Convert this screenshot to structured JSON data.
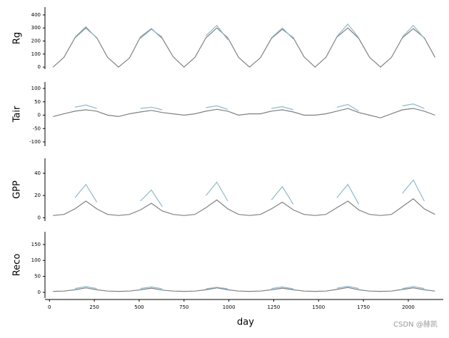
{
  "chart_data": [
    {
      "type": "line",
      "ylabel": "Rg",
      "x": [
        20,
        81,
        142,
        203,
        264,
        324,
        385,
        446,
        507,
        568,
        629,
        689,
        750,
        811,
        872,
        933,
        994,
        1054,
        1115,
        1176,
        1237,
        1298,
        1359,
        1419,
        1480,
        1541,
        1602,
        1663,
        1724,
        1784,
        1845,
        1906,
        1967,
        2028,
        2089,
        2149
      ],
      "xlim": [
        -25,
        2195
      ],
      "ylim": [
        -16,
        460
      ],
      "yticks": [
        0,
        100,
        200,
        300,
        400
      ],
      "series": [
        {
          "color": "#808080",
          "values": [
            0,
            75,
            225,
            300,
            225,
            75,
            0,
            70,
            230,
            295,
            220,
            80,
            0,
            75,
            225,
            300,
            225,
            75,
            0,
            72,
            220,
            290,
            225,
            78,
            0,
            75,
            230,
            300,
            220,
            75,
            0,
            75,
            225,
            295,
            225,
            75
          ]
        },
        {
          "color": "#8fb8cc",
          "values": [
            null,
            null,
            230,
            310,
            220,
            null,
            null,
            null,
            220,
            290,
            230,
            null,
            null,
            null,
            240,
            320,
            210,
            null,
            null,
            null,
            225,
            300,
            215,
            null,
            null,
            null,
            235,
            330,
            225,
            null,
            null,
            null,
            230,
            320,
            220,
            null
          ]
        }
      ]
    },
    {
      "type": "line",
      "ylabel": "Tair",
      "x": [
        20,
        81,
        142,
        203,
        264,
        324,
        385,
        446,
        507,
        568,
        629,
        689,
        750,
        811,
        872,
        933,
        994,
        1054,
        1115,
        1176,
        1237,
        1298,
        1359,
        1419,
        1480,
        1541,
        1602,
        1663,
        1724,
        1784,
        1845,
        1906,
        1967,
        2028,
        2089,
        2149
      ],
      "xlim": [
        -25,
        2195
      ],
      "ylim": [
        -116,
        124
      ],
      "yticks": [
        -100,
        -50,
        0,
        50,
        100
      ],
      "series": [
        {
          "color": "#808080",
          "values": [
            -5,
            5,
            15,
            20,
            15,
            0,
            -5,
            5,
            12,
            18,
            10,
            5,
            0,
            5,
            15,
            22,
            15,
            0,
            5,
            5,
            15,
            20,
            12,
            0,
            0,
            5,
            15,
            25,
            10,
            0,
            -10,
            5,
            20,
            25,
            15,
            0
          ]
        },
        {
          "color": "#8fb8cc",
          "values": [
            null,
            null,
            30,
            38,
            25,
            null,
            null,
            null,
            25,
            30,
            20,
            null,
            null,
            null,
            28,
            35,
            22,
            null,
            null,
            null,
            25,
            32,
            20,
            null,
            null,
            null,
            30,
            40,
            15,
            null,
            null,
            null,
            35,
            42,
            25,
            null
          ]
        }
      ]
    },
    {
      "type": "line",
      "ylabel": "GPP",
      "x": [
        20,
        81,
        142,
        203,
        264,
        324,
        385,
        446,
        507,
        568,
        629,
        689,
        750,
        811,
        872,
        933,
        994,
        1054,
        1115,
        1176,
        1237,
        1298,
        1359,
        1419,
        1480,
        1541,
        1602,
        1663,
        1724,
        1784,
        1845,
        1906,
        1967,
        2028,
        2089,
        2149
      ],
      "xlim": [
        -25,
        2195
      ],
      "ylim": [
        -3,
        53.5
      ],
      "yticks": [
        0,
        20,
        40
      ],
      "series": [
        {
          "color": "#808080",
          "values": [
            2,
            3,
            8,
            15,
            8,
            3,
            2,
            3,
            7,
            13,
            6,
            3,
            2,
            3,
            9,
            16,
            8,
            3,
            2,
            3,
            8,
            14,
            7,
            3,
            2,
            3,
            9,
            15,
            7,
            3,
            2,
            3,
            10,
            17,
            8,
            3
          ]
        },
        {
          "color": "#8fb8cc",
          "values": [
            null,
            null,
            18,
            30,
            14,
            null,
            null,
            null,
            15,
            25,
            10,
            null,
            null,
            null,
            20,
            32,
            15,
            null,
            null,
            null,
            16,
            28,
            12,
            null,
            null,
            null,
            18,
            30,
            12,
            null,
            null,
            null,
            22,
            34,
            15,
            null
          ]
        }
      ]
    },
    {
      "type": "line",
      "ylabel": "Reco",
      "xlabel": "day",
      "x": [
        20,
        81,
        142,
        203,
        264,
        324,
        385,
        446,
        507,
        568,
        629,
        689,
        750,
        811,
        872,
        933,
        994,
        1054,
        1115,
        1176,
        1237,
        1298,
        1359,
        1419,
        1480,
        1541,
        1602,
        1663,
        1724,
        1784,
        1845,
        1906,
        1967,
        2028,
        2089,
        2149
      ],
      "xlim": [
        -25,
        2195
      ],
      "ylim": [
        -18,
        190
      ],
      "yticks": [
        0,
        50,
        100,
        150
      ],
      "xticks": [
        0,
        250,
        500,
        750,
        1000,
        1250,
        1500,
        1750,
        2000
      ],
      "series": [
        {
          "color": "#808080",
          "values": [
            3,
            4,
            8,
            14,
            8,
            4,
            3,
            4,
            8,
            13,
            7,
            4,
            3,
            4,
            8,
            14,
            8,
            4,
            3,
            4,
            8,
            13,
            8,
            4,
            3,
            4,
            9,
            15,
            8,
            4,
            3,
            4,
            9,
            14,
            8,
            4
          ]
        },
        {
          "color": "#8fb8cc",
          "values": [
            null,
            null,
            12,
            18,
            12,
            null,
            null,
            null,
            12,
            17,
            11,
            null,
            null,
            null,
            11,
            16,
            11,
            null,
            null,
            null,
            12,
            17,
            11,
            null,
            null,
            null,
            13,
            19,
            12,
            null,
            null,
            null,
            12,
            18,
            12,
            null
          ]
        }
      ]
    }
  ],
  "watermark": "CSDN @赫凯"
}
